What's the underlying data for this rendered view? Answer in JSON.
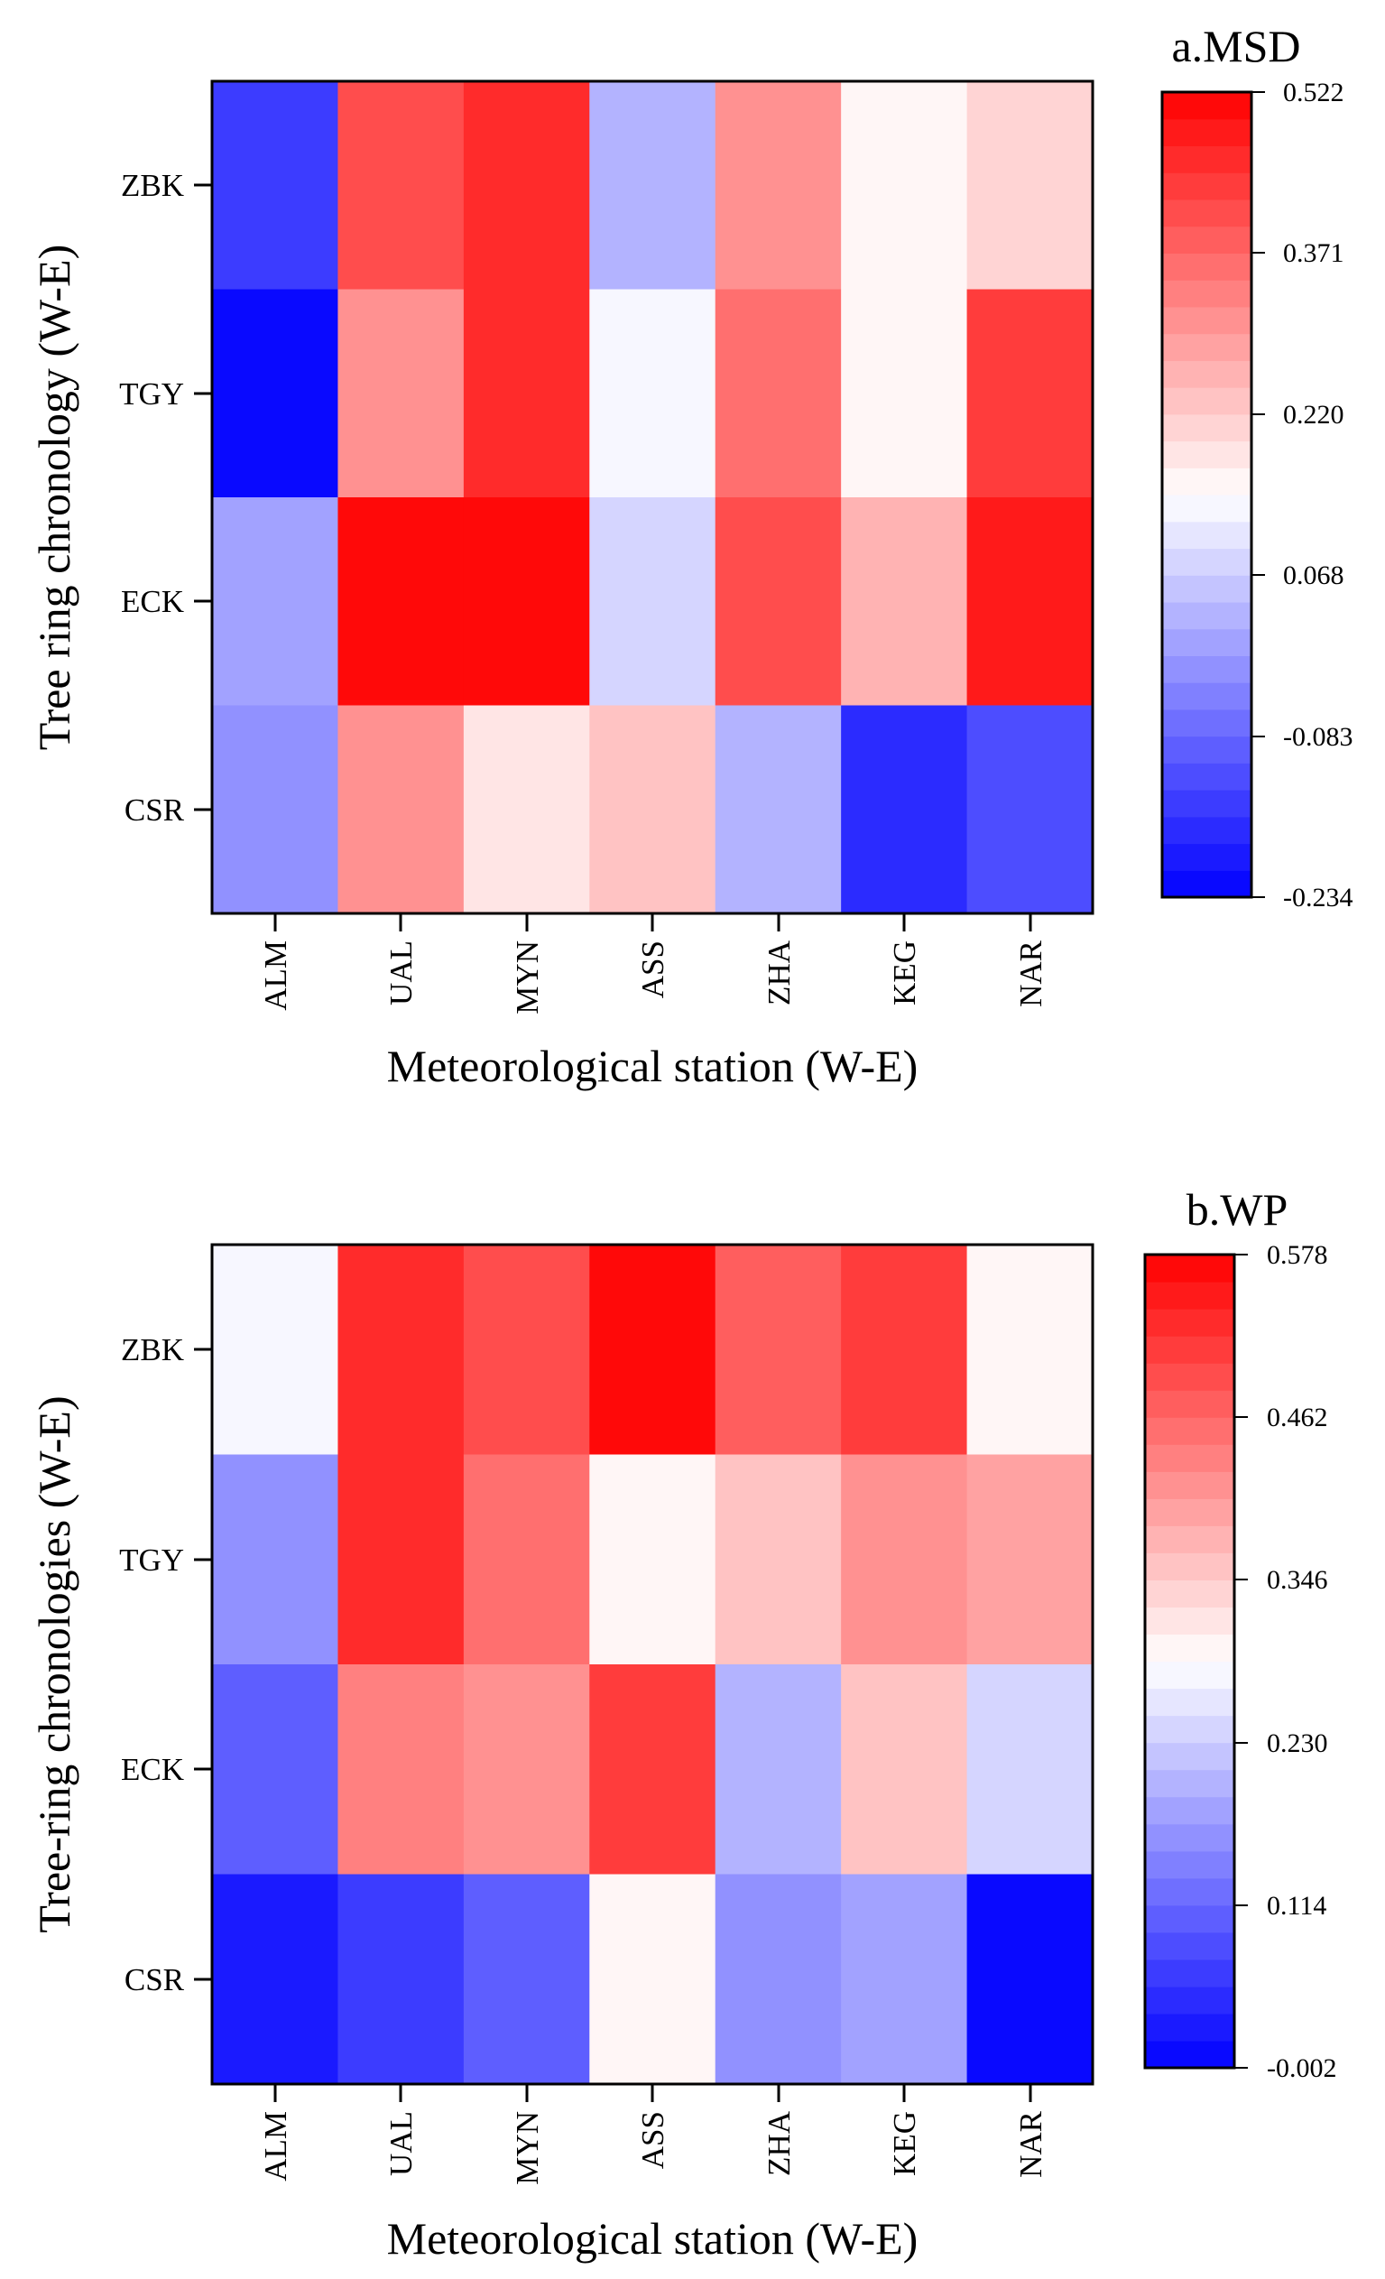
{
  "chart_data": [
    {
      "type": "heatmap",
      "title": "a.MSD",
      "xlabel": "Meteorological station (W-E)",
      "ylabel": "Tree ring chronology (W-E)",
      "x_categories": [
        "ALM",
        "UAL",
        "MYN",
        "ASS",
        "ZHA",
        "KEG",
        "NAR"
      ],
      "y_categories": [
        "ZBK",
        "TGY",
        "ECK",
        "CSR"
      ],
      "values": [
        [
          -0.15,
          0.4,
          0.46,
          0.02,
          0.3,
          0.15,
          0.21
        ],
        [
          -0.234,
          0.32,
          0.46,
          0.12,
          0.37,
          0.15,
          0.44
        ],
        [
          0.01,
          0.52,
          0.52,
          0.09,
          0.41,
          0.26,
          0.48
        ],
        [
          -0.03,
          0.32,
          0.19,
          0.23,
          0.04,
          -0.16,
          -0.12
        ]
      ],
      "colorbar_ticks": [
        "0.522",
        "0.371",
        "0.220",
        "0.068",
        "-0.083",
        "-0.234"
      ],
      "vmin": -0.234,
      "vmax": 0.522,
      "colormap": "bwr"
    },
    {
      "type": "heatmap",
      "title": "b.WP",
      "xlabel": "Meteorological station (W-E)",
      "ylabel": "Tree-ring chronologies (W-E)",
      "x_categories": [
        "ALM",
        "UAL",
        "MYN",
        "ASS",
        "ZHA",
        "KEG",
        "NAR"
      ],
      "y_categories": [
        "ZBK",
        "TGY",
        "ECK",
        "CSR"
      ],
      "values": [
        [
          0.27,
          0.53,
          0.5,
          0.578,
          0.47,
          0.51,
          0.3
        ],
        [
          0.17,
          0.52,
          0.46,
          0.3,
          0.36,
          0.41,
          0.39
        ],
        [
          0.1,
          0.43,
          0.41,
          0.51,
          0.21,
          0.36,
          0.23
        ],
        [
          0.03,
          0.07,
          0.1,
          0.3,
          0.17,
          0.19,
          -0.002
        ]
      ],
      "colorbar_ticks": [
        "0.578",
        "0.462",
        "0.346",
        "0.230",
        "0.114",
        "-0.002"
      ],
      "vmin": -0.002,
      "vmax": 0.578,
      "colormap": "bwr"
    }
  ]
}
